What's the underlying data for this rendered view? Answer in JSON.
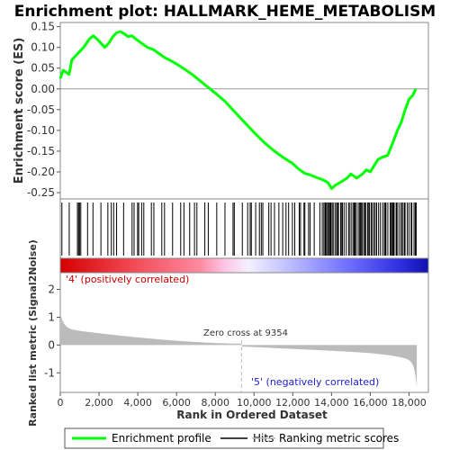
{
  "chart_data": {
    "type": "line",
    "title": "Enrichment plot: HALLMARK_HEME_METABOLISM",
    "ylabel_top": "Enrichment score (ES)",
    "ylabel_bottom": "Ranked list metric (Signal2Noise)",
    "xlabel": "Rank in Ordered Dataset",
    "x_ticks": [
      0,
      2000,
      4000,
      6000,
      8000,
      10000,
      12000,
      14000,
      16000,
      18000
    ],
    "x_tick_labels": [
      "0",
      "2,000",
      "4,000",
      "6,000",
      "8,000",
      "10,000",
      "12,000",
      "14,000",
      "16,000",
      "18,000"
    ],
    "xlim": [
      0,
      19000
    ],
    "es_ylim": [
      -0.265,
      0.16
    ],
    "es_y_ticks": [
      0.15,
      0.1,
      0.05,
      0.0,
      -0.05,
      -0.1,
      -0.15,
      -0.2,
      -0.25
    ],
    "es_y_tick_labels": [
      "0.15",
      "0.10",
      "0.05",
      "0.00",
      "-0.05",
      "-0.10",
      "-0.15",
      "-0.20",
      "-0.25"
    ],
    "metric_ylim": [
      -1.7,
      2.6
    ],
    "metric_y_ticks": [
      2,
      1,
      0,
      -1
    ],
    "metric_y_tick_labels": [
      "2",
      "1",
      "0",
      "-1"
    ],
    "total_rank": 18400,
    "zero_cross": 9354,
    "zero_cross_label": "Zero cross at 9354",
    "pos_label": "'4' (positively correlated)",
    "neg_label": "'5' (negatively correlated)",
    "enrichment_profile": {
      "x": [
        0,
        150,
        300,
        450,
        600,
        800,
        1000,
        1200,
        1350,
        1500,
        1700,
        1900,
        2100,
        2300,
        2500,
        2700,
        2900,
        3100,
        3300,
        3500,
        3700,
        3900,
        4200,
        4500,
        4800,
        5100,
        5400,
        5700,
        6000,
        6400,
        6800,
        7200,
        7600,
        8000,
        8500,
        9000,
        9500,
        10000,
        10500,
        11000,
        11500,
        12000,
        12300,
        12600,
        12900,
        13200,
        13500,
        13800,
        14000,
        14200,
        14500,
        14800,
        15000,
        15300,
        15600,
        15800,
        16000,
        16200,
        16400,
        16600,
        16900,
        17200,
        17400,
        17600,
        17800,
        18000,
        18200,
        18350
      ],
      "y": [
        0.025,
        0.045,
        0.04,
        0.035,
        0.07,
        0.08,
        0.09,
        0.1,
        0.11,
        0.12,
        0.128,
        0.12,
        0.11,
        0.1,
        0.11,
        0.125,
        0.135,
        0.138,
        0.133,
        0.126,
        0.128,
        0.12,
        0.11,
        0.1,
        0.095,
        0.085,
        0.075,
        0.068,
        0.06,
        0.048,
        0.035,
        0.02,
        0.005,
        -0.01,
        -0.03,
        -0.055,
        -0.08,
        -0.105,
        -0.128,
        -0.148,
        -0.165,
        -0.18,
        -0.193,
        -0.203,
        -0.207,
        -0.213,
        -0.218,
        -0.225,
        -0.24,
        -0.232,
        -0.224,
        -0.215,
        -0.205,
        -0.215,
        -0.205,
        -0.195,
        -0.2,
        -0.185,
        -0.17,
        -0.165,
        -0.16,
        -0.125,
        -0.1,
        -0.08,
        -0.05,
        -0.025,
        -0.015,
        0.0
      ]
    },
    "legend": {
      "placement": "bottom",
      "entries": [
        "Enrichment profile",
        "Hits",
        "Ranking metric scores"
      ],
      "colors": [
        "#00ff00",
        "#000000",
        "#bbbbbb"
      ]
    },
    "colors": {
      "profile": "#00ff00",
      "hits": "#000000",
      "metric_fill": "#bbbbbb",
      "pos_color": "#ff0000",
      "neg_color": "#0000ff",
      "zero_line": "#bbbbbb"
    }
  }
}
